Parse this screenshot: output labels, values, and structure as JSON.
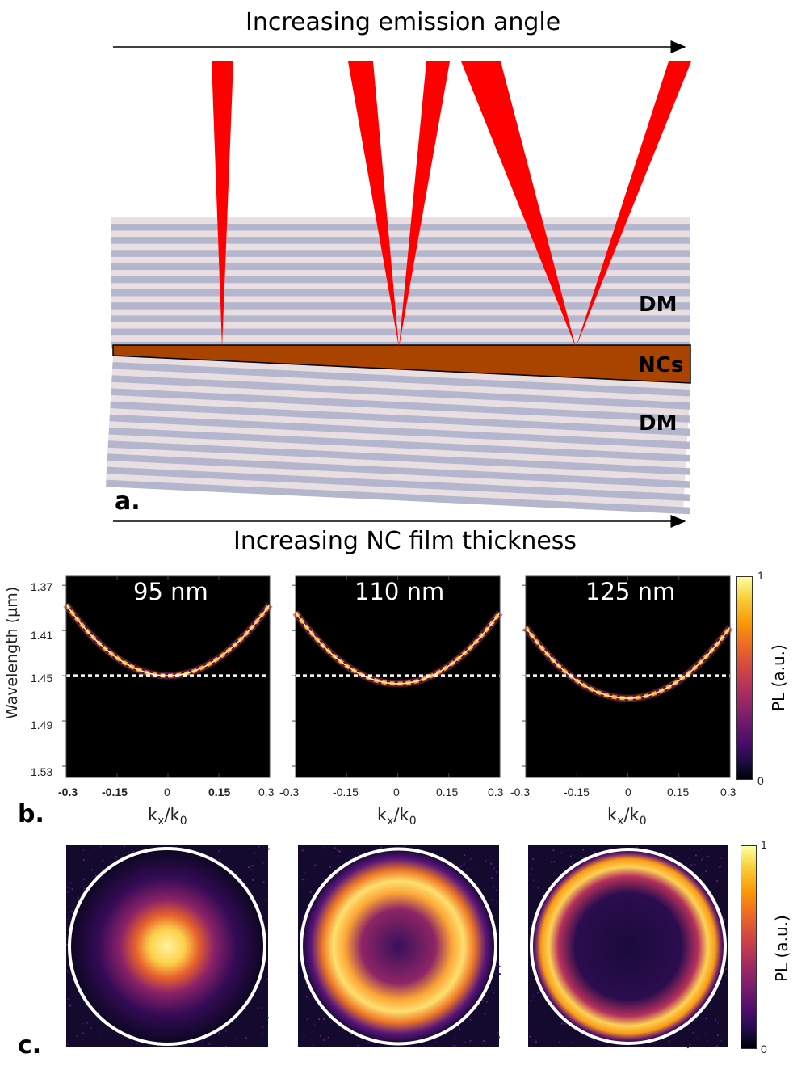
{
  "panel_a": {
    "top_caption": "Increasing emission angle",
    "bottom_caption": "Increasing NC film thickness",
    "label": "a.",
    "layer_labels": {
      "dm_top": "DM",
      "ncs": "NCs",
      "dm_bottom": "DM"
    },
    "colors": {
      "beam": "#ff0000",
      "nc_film": "#a84300",
      "mirror_dark": "#b3b6cc",
      "mirror_light": "#e9dfe2"
    }
  },
  "panel_b": {
    "label": "b.",
    "ylabel": "Wavelength (µm)",
    "xlabel_main": "k",
    "xlabel_sub1": "x",
    "xlabel_slash": "/k",
    "xlabel_sub2": "0",
    "yticks": [
      "1.37",
      "1.41",
      "1.45",
      "1.49",
      "1.53"
    ],
    "xticks": [
      "-0.3",
      "-0.15",
      "0",
      "0.15",
      "0.3"
    ],
    "panels": [
      {
        "title": "95 nm",
        "min_wavelength_um": 1.45
      },
      {
        "title": "110 nm",
        "min_wavelength_um": 1.457
      },
      {
        "title": "125 nm",
        "min_wavelength_um": 1.47
      }
    ],
    "reference_wavelength_um": 1.45,
    "colorbar": {
      "label": "PL (a.u.)",
      "max": "1",
      "min": "0",
      "colormap": "inferno"
    }
  },
  "panel_c": {
    "label": "c.",
    "colorbar": {
      "label": "PL (a.u.)",
      "max": "1",
      "min": "0"
    },
    "images": [
      "spot",
      "ring",
      "large-ring"
    ]
  }
}
